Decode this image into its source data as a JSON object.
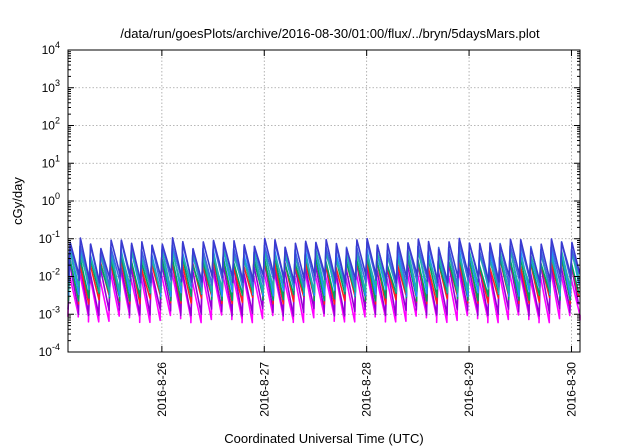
{
  "chart_data": {
    "type": "line",
    "title": "/data/run/goesPlots/archive/2016-08-30/01:00/flux/../bryn/5daysMars.plot",
    "xlabel": "Coordinated Universal Time (UTC)",
    "ylabel": "cGy/day",
    "yscale": "log",
    "ylim_exponents": [
      -4,
      4
    ],
    "y_tick_base": "10",
    "y_tick_exponents": [
      "-4",
      "-3",
      "-2",
      "-1",
      "0",
      "1",
      "2",
      "3",
      "4"
    ],
    "xlim": [
      "2016-08-25T02:00",
      "2016-08-30T02:00"
    ],
    "x_ticks": [
      {
        "date": "2016-08-26",
        "label": "2016-8-26"
      },
      {
        "date": "2016-08-27",
        "label": "2016-8-27"
      },
      {
        "date": "2016-08-28",
        "label": "2016-8-28"
      },
      {
        "date": "2016-08-29",
        "label": "2016-8-29"
      },
      {
        "date": "2016-08-30",
        "label": "2016-8-30"
      }
    ],
    "grid": true,
    "pattern": "sawtooth, ~10 cycles per day",
    "series": [
      {
        "color": "#ff00ff",
        "peak": 0.012,
        "trough": 0.0008
      },
      {
        "color": "#9400d3",
        "peak": 0.02,
        "trough": 0.0012
      },
      {
        "color": "#ff2020",
        "peak": 0.025,
        "trough": 0.0025
      },
      {
        "color": "#00a060",
        "peak": 0.03,
        "trough": 0.003
      },
      {
        "color": "#1e90ff",
        "peak": 0.05,
        "trough": 0.004
      },
      {
        "color": "#20b2aa",
        "peak": 0.04,
        "trough": 0.005
      },
      {
        "color": "#4169e1",
        "peak": 0.065,
        "trough": 0.007
      },
      {
        "color": "#3a3ad0",
        "peak": 0.08,
        "trough": 0.009
      }
    ]
  }
}
